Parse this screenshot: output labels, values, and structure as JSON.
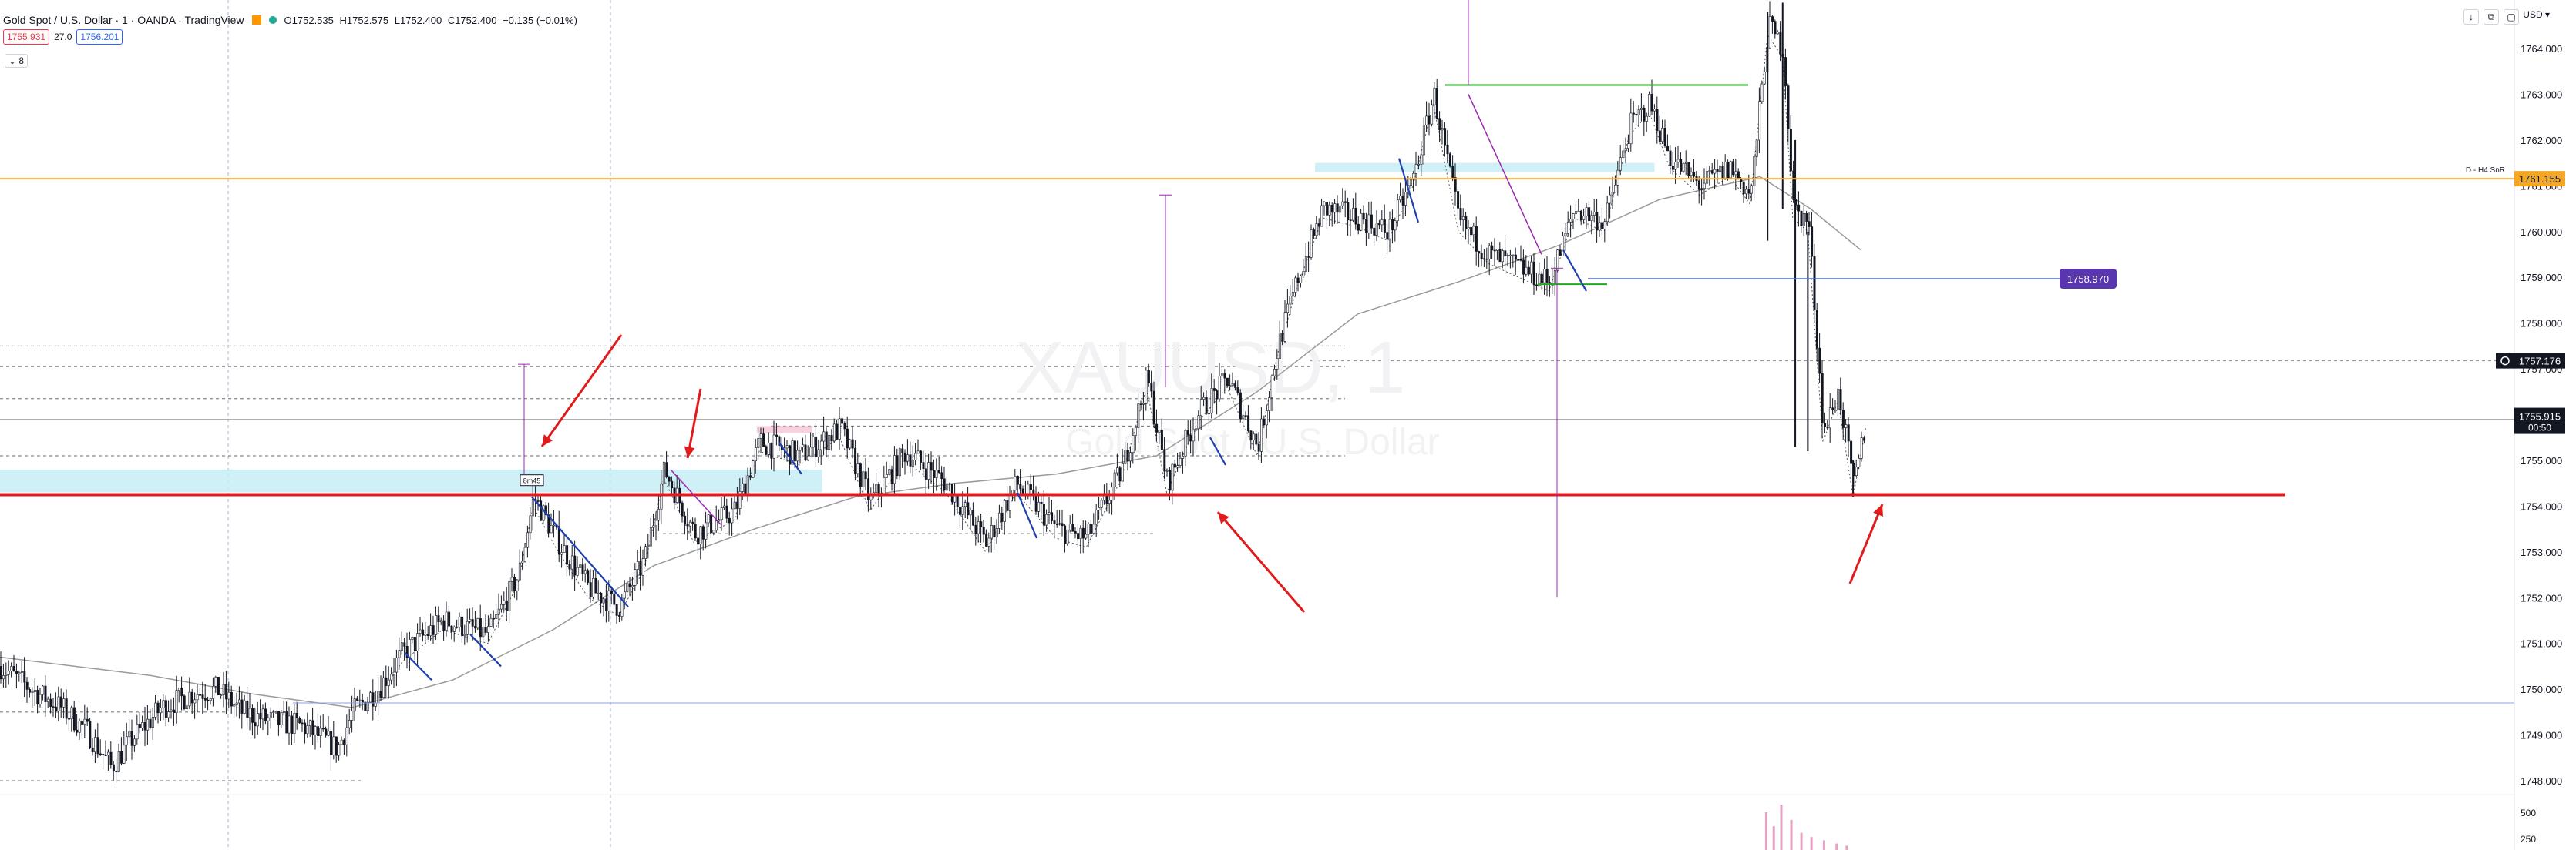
{
  "header": {
    "symbol_title": "Gold Spot / U.S. Dollar · 1 · OANDA · TradingView",
    "ohlc": {
      "open": "O1752.535",
      "high": "H1752.575",
      "low": "L1752.400",
      "close": "C1752.400",
      "change": "−0.135 (−0.01%)"
    },
    "sell_price": "1755.931",
    "spread": "27.0",
    "buy_price": "1756.201",
    "collapse_label": "8",
    "currency": "USD"
  },
  "watermark": {
    "symbol": "XAUUSD, 1",
    "description": "Gold Spot / U.S. Dollar"
  },
  "colors": {
    "candle": "#131722",
    "red_line": "#e11b1b",
    "orange_line": "#f5b041",
    "cyan_zone": "#c7edf5",
    "pink_zone": "#f8c8d8",
    "purple": "#9c27b0",
    "blue_zigzag": "#1e40af",
    "green": "#22aa22",
    "ma": "#9a9a9a",
    "violet_label": "#5a35b0",
    "dashed": "#6b6b6b"
  },
  "chart_data": {
    "type": "candlestick",
    "y_axis": {
      "min": 1747.5,
      "max": 1765.0,
      "ticks": [
        "1764.000",
        "1763.000",
        "1762.000",
        "1761.000",
        "1760.000",
        "1759.000",
        "1758.000",
        "1757.000",
        "1756.000",
        "1755.000",
        "1754.000",
        "1753.000",
        "1752.000",
        "1751.000",
        "1750.000",
        "1749.000",
        "1748.000"
      ]
    },
    "volume_axis": {
      "ticks": [
        "500",
        "250"
      ]
    },
    "price_labels": [
      {
        "text": "1761.155",
        "value": 1761.155,
        "kind": "orange"
      },
      {
        "text": "1758.970",
        "value": 1758.97,
        "kind": "violet"
      },
      {
        "text": "1757.176",
        "value": 1757.176,
        "kind": "dark"
      },
      {
        "text": "1755.915",
        "value": 1755.915,
        "kind": "current"
      },
      {
        "text": "00:50",
        "value": 1755.915,
        "kind": "countdown"
      }
    ],
    "annotations": {
      "h4_label": "D - H4 SnR",
      "box_label": "8m45"
    },
    "key_levels": {
      "red_support": 1754.25,
      "orange_resistance": 1761.155,
      "blue_level": 1758.97,
      "green_top": 1763.2,
      "green_bottom": 1758.85,
      "blue_low_line": 1749.7
    },
    "zones": [
      {
        "name": "left-cyan",
        "from_x": 0.0,
        "to_x": 0.327,
        "low": 1754.3,
        "high": 1754.8
      },
      {
        "name": "top-cyan",
        "from_x": 0.523,
        "to_x": 0.658,
        "low": 1761.3,
        "high": 1761.5
      },
      {
        "name": "pink",
        "from_x": 0.301,
        "to_x": 0.323,
        "low": 1755.6,
        "high": 1755.75
      }
    ],
    "close_path": [
      [
        0.0,
        1750.5
      ],
      [
        0.012,
        1750.0
      ],
      [
        0.024,
        1749.6
      ],
      [
        0.034,
        1749.1
      ],
      [
        0.044,
        1748.3
      ],
      [
        0.052,
        1748.9
      ],
      [
        0.064,
        1749.6
      ],
      [
        0.076,
        1749.9
      ],
      [
        0.086,
        1750.0
      ],
      [
        0.096,
        1749.5
      ],
      [
        0.108,
        1749.3
      ],
      [
        0.12,
        1749.2
      ],
      [
        0.134,
        1748.7
      ],
      [
        0.14,
        1749.5
      ],
      [
        0.15,
        1750.0
      ],
      [
        0.16,
        1750.8
      ],
      [
        0.176,
        1751.5
      ],
      [
        0.194,
        1751.2
      ],
      [
        0.206,
        1752.5
      ],
      [
        0.212,
        1754.2
      ],
      [
        0.222,
        1753.2
      ],
      [
        0.234,
        1752.2
      ],
      [
        0.246,
        1751.8
      ],
      [
        0.256,
        1752.8
      ],
      [
        0.264,
        1754.8
      ],
      [
        0.276,
        1753.4
      ],
      [
        0.292,
        1753.9
      ],
      [
        0.302,
        1755.4
      ],
      [
        0.318,
        1755.1
      ],
      [
        0.334,
        1755.7
      ],
      [
        0.346,
        1754.1
      ],
      [
        0.36,
        1755.2
      ],
      [
        0.376,
        1754.5
      ],
      [
        0.392,
        1753.2
      ],
      [
        0.404,
        1754.5
      ],
      [
        0.42,
        1753.5
      ],
      [
        0.432,
        1753.3
      ],
      [
        0.446,
        1754.8
      ],
      [
        0.456,
        1756.8
      ],
      [
        0.464,
        1754.5
      ],
      [
        0.476,
        1756.0
      ],
      [
        0.488,
        1756.8
      ],
      [
        0.5,
        1755.3
      ],
      [
        0.508,
        1757.5
      ],
      [
        0.516,
        1759.0
      ],
      [
        0.526,
        1760.5
      ],
      [
        0.54,
        1760.3
      ],
      [
        0.552,
        1760.0
      ],
      [
        0.562,
        1761.2
      ],
      [
        0.57,
        1763.0
      ],
      [
        0.58,
        1760.2
      ],
      [
        0.592,
        1759.5
      ],
      [
        0.604,
        1759.2
      ],
      [
        0.616,
        1758.9
      ],
      [
        0.626,
        1760.5
      ],
      [
        0.638,
        1760.2
      ],
      [
        0.648,
        1762.3
      ],
      [
        0.656,
        1762.8
      ],
      [
        0.664,
        1761.6
      ],
      [
        0.676,
        1761.0
      ],
      [
        0.688,
        1761.4
      ],
      [
        0.696,
        1760.8
      ],
      [
        0.703,
        1764.5
      ],
      [
        0.709,
        1764.0
      ],
      [
        0.713,
        1760.5
      ],
      [
        0.719,
        1760.2
      ],
      [
        0.725,
        1755.6
      ],
      [
        0.731,
        1756.5
      ],
      [
        0.737,
        1754.4
      ],
      [
        0.742,
        1755.9
      ]
    ],
    "ma_path": [
      [
        0.0,
        1750.7
      ],
      [
        0.06,
        1750.3
      ],
      [
        0.1,
        1749.9
      ],
      [
        0.14,
        1749.6
      ],
      [
        0.18,
        1750.2
      ],
      [
        0.22,
        1751.3
      ],
      [
        0.26,
        1752.7
      ],
      [
        0.3,
        1753.5
      ],
      [
        0.34,
        1754.2
      ],
      [
        0.38,
        1754.5
      ],
      [
        0.42,
        1754.7
      ],
      [
        0.46,
        1755.1
      ],
      [
        0.5,
        1756.5
      ],
      [
        0.54,
        1758.2
      ],
      [
        0.58,
        1758.9
      ],
      [
        0.62,
        1759.7
      ],
      [
        0.66,
        1760.7
      ],
      [
        0.7,
        1761.2
      ],
      [
        0.72,
        1760.5
      ],
      [
        0.74,
        1759.6
      ]
    ],
    "volume": [
      {
        "x": 0.702,
        "v": 350
      },
      {
        "x": 0.705,
        "v": 220
      },
      {
        "x": 0.708,
        "v": 420
      },
      {
        "x": 0.712,
        "v": 280
      },
      {
        "x": 0.716,
        "v": 160
      },
      {
        "x": 0.72,
        "v": 120
      },
      {
        "x": 0.725,
        "v": 90
      },
      {
        "x": 0.73,
        "v": 60
      },
      {
        "x": 0.734,
        "v": 40
      }
    ]
  }
}
